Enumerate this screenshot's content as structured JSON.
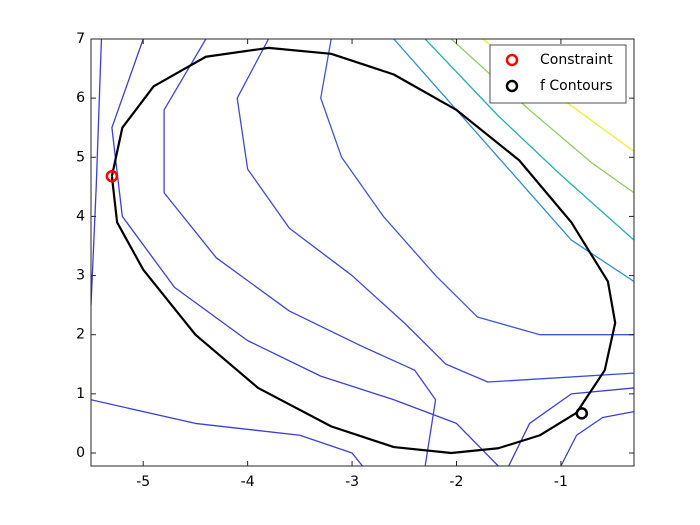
{
  "chart_data": {
    "type": "contour",
    "xlim": [
      -5.5,
      -0.3
    ],
    "ylim": [
      -0.22,
      7
    ],
    "xticks": [
      -5,
      -4,
      -3,
      -2,
      -1
    ],
    "yticks": [
      0,
      1,
      2,
      3,
      4,
      5,
      6,
      7
    ],
    "legend": "top-right",
    "contours": [
      {
        "color": "#3b3fd4",
        "x": [
          -5.5,
          -5.45,
          -5.4
        ],
        "y": [
          2.5,
          4.5,
          7
        ]
      },
      {
        "color": "#3b3fd4",
        "x": [
          -5.0,
          -5.3,
          -5.2,
          -4.7,
          -4.0,
          -3.3,
          -2.6,
          -2.0,
          -1.6
        ],
        "y": [
          7,
          5.5,
          4,
          2.8,
          1.9,
          1.3,
          0.9,
          0.5,
          -0.22
        ]
      },
      {
        "color": "#3d45d6",
        "x": [
          -4.4,
          -4.8,
          -4.8,
          -4.3,
          -3.6,
          -2.9,
          -2.4,
          -2.2,
          -2.3
        ],
        "y": [
          7,
          5.8,
          4.4,
          3.3,
          2.4,
          1.8,
          1.4,
          0.9,
          -0.22
        ]
      },
      {
        "color": "#3d4ad8",
        "x": [
          -3.8,
          -4.1,
          -4.0,
          -3.6,
          -3.0,
          -2.5,
          -2.1,
          -1.7,
          -0.3
        ],
        "y": [
          7,
          6.0,
          4.8,
          3.8,
          3.0,
          2.2,
          1.5,
          1.2,
          1.35
        ]
      },
      {
        "color": "#3f55da",
        "x": [
          -3.2,
          -3.3,
          -3.1,
          -2.7,
          -2.2,
          -1.8,
          -1.2,
          -0.3
        ],
        "y": [
          7,
          6.0,
          5.0,
          4.0,
          3.0,
          2.3,
          2.0,
          2.0
        ]
      },
      {
        "color": "#2e8fd0",
        "x": [
          -2.6,
          -2.0,
          -1.4,
          -0.9,
          -0.3
        ],
        "y": [
          7,
          5.8,
          4.6,
          3.6,
          2.9
        ]
      },
      {
        "color": "#20b3b0",
        "x": [
          -2.3,
          -1.6,
          -1.0,
          -0.3
        ],
        "y": [
          7,
          5.7,
          4.7,
          3.6
        ]
      },
      {
        "color": "#8fd060",
        "x": [
          -2.05,
          -1.3,
          -0.7,
          -0.3
        ],
        "y": [
          7,
          5.8,
          4.9,
          4.4
        ]
      },
      {
        "color": "#f0f020",
        "x": [
          -1.75,
          -1.0,
          -0.3
        ],
        "y": [
          7,
          6.0,
          5.1
        ]
      },
      {
        "color": "#3b3fd4",
        "x": [
          -5.5,
          -4.5,
          -3.5,
          -3.0,
          -2.9
        ],
        "y": [
          0.9,
          0.5,
          0.3,
          0.0,
          -0.22
        ]
      },
      {
        "color": "#3b3fd4",
        "x": [
          -1.5,
          -1.3,
          -0.9,
          -0.3
        ],
        "y": [
          -0.22,
          0.5,
          1.0,
          1.1
        ]
      },
      {
        "color": "#3b3fd4",
        "x": [
          -1.0,
          -0.85,
          -0.6,
          -0.3
        ],
        "y": [
          -0.22,
          0.3,
          0.6,
          0.7
        ]
      }
    ],
    "curve": {
      "color": "#000000",
      "x": [
        -5.3,
        -5.2,
        -4.9,
        -4.4,
        -3.8,
        -3.2,
        -2.6,
        -2.0,
        -1.4,
        -0.9,
        -0.55,
        -0.48,
        -0.58,
        -0.85,
        -1.2,
        -1.6,
        -2.05,
        -2.6,
        -3.2,
        -3.9,
        -4.5,
        -5.0,
        -5.25,
        -5.3
      ],
      "y": [
        4.68,
        5.5,
        6.2,
        6.7,
        6.85,
        6.75,
        6.4,
        5.8,
        4.95,
        3.9,
        2.9,
        2.2,
        1.4,
        0.68,
        0.3,
        0.08,
        0.0,
        0.1,
        0.45,
        1.1,
        2.0,
        3.1,
        3.9,
        4.68
      ]
    },
    "series": [
      {
        "name": "Constraint",
        "color": "#ff0000",
        "x": [
          -5.3
        ],
        "values": [
          4.68
        ]
      },
      {
        "name": "f Contours",
        "color": "#000000",
        "x": [
          -0.8
        ],
        "values": [
          0.67
        ]
      }
    ]
  }
}
